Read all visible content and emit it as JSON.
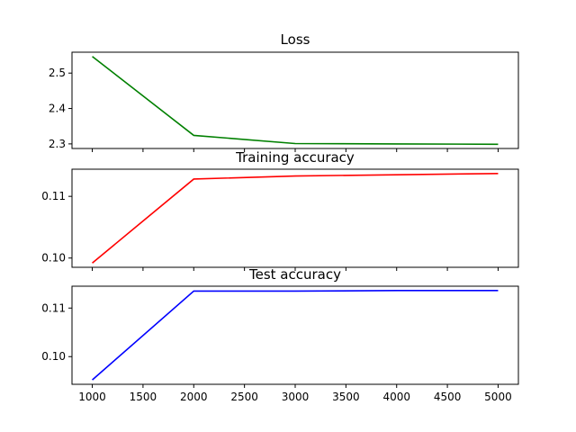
{
  "chart_data": [
    {
      "type": "line",
      "title": "Loss",
      "xlabel": "",
      "ylabel": "",
      "x": [
        1000,
        2000,
        3000,
        4000,
        5000
      ],
      "series": [
        {
          "values": [
            2.547,
            2.324,
            2.301,
            2.3,
            2.299
          ],
          "color": "#008000"
        }
      ],
      "xlim": [
        800,
        5200
      ],
      "ylim": [
        2.287,
        2.559
      ],
      "yticks": [
        2.3,
        2.4,
        2.5
      ],
      "ytick_labels": [
        "2.3",
        "2.4",
        "2.5"
      ],
      "xtick_labels_visible": false
    },
    {
      "type": "line",
      "title": "Training accuracy",
      "xlabel": "",
      "ylabel": "",
      "x": [
        1000,
        2000,
        3000,
        4000,
        5000
      ],
      "series": [
        {
          "values": [
            0.0992,
            0.1128,
            0.1133,
            0.1135,
            0.1137
          ],
          "color": "#ff0000"
        }
      ],
      "xlim": [
        800,
        5200
      ],
      "ylim": [
        0.0985,
        0.1144
      ],
      "yticks": [
        0.1,
        0.11
      ],
      "ytick_labels": [
        "0.10",
        "0.11"
      ],
      "xtick_labels_visible": false
    },
    {
      "type": "line",
      "title": "Test accuracy",
      "xlabel": "",
      "ylabel": "",
      "x": [
        1000,
        2000,
        3000,
        4000,
        5000
      ],
      "series": [
        {
          "values": [
            0.0952,
            0.1135,
            0.1135,
            0.1136,
            0.1136
          ],
          "color": "#0000ff"
        }
      ],
      "xlim": [
        800,
        5200
      ],
      "ylim": [
        0.0943,
        0.1145
      ],
      "yticks": [
        0.1,
        0.11
      ],
      "ytick_labels": [
        "0.10",
        "0.11"
      ],
      "xticks": [
        1000,
        1500,
        2000,
        2500,
        3000,
        3500,
        4000,
        4500,
        5000
      ],
      "xtick_labels": [
        "1000",
        "1500",
        "2000",
        "2500",
        "3000",
        "3500",
        "4000",
        "4500",
        "5000"
      ],
      "xtick_labels_visible": true
    }
  ]
}
